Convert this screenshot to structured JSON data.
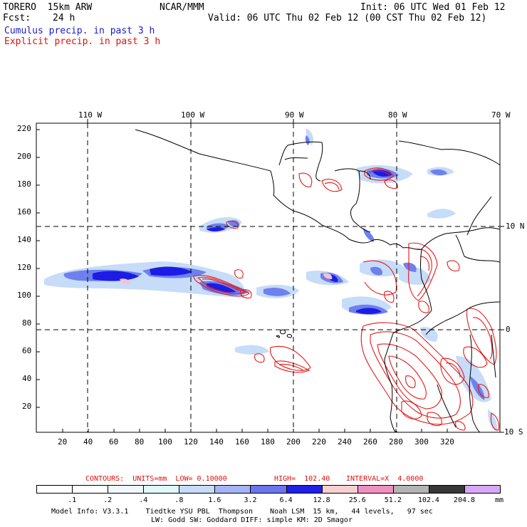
{
  "header": {
    "model": "TORERO  15km ARW",
    "org": "NCAR/MMM",
    "init": "Init: 06 UTC Wed 01 Feb 12",
    "fcst_label": "Fcst:",
    "fcst_value": "24 h",
    "valid": "Valid: 06 UTC Thu 02 Feb 12 (00 CST Thu 02 Feb 12)",
    "line_cumulus": "Cumulus precip. in past 3 h",
    "line_explicit": "Explicit precip. in past 3 h"
  },
  "map": {
    "lon_labels": [
      "110 W",
      "100 W",
      "90 W",
      "80 W",
      "70 W"
    ],
    "lat_labels": [
      "10 N",
      "0",
      "10 S"
    ],
    "y_ticks": [
      "220",
      "200",
      "180",
      "160",
      "140",
      "120",
      "100",
      "80",
      "60",
      "40",
      "20"
    ],
    "x_ticks": [
      "20",
      "40",
      "60",
      "80",
      "100",
      "120",
      "140",
      "160",
      "180",
      "200",
      "220",
      "240",
      "260",
      "280",
      "300",
      "320"
    ],
    "colors": {
      "coast": "#000000",
      "cumulus_light": "#c6dcf8",
      "cumulus_mid": "#6f80ee",
      "cumulus_dark": "#1c1ce6",
      "explicit_contour": "#e81818"
    }
  },
  "contours_line": {
    "contours": "CONTOURS:  UNITS=mm  LOW= 0.10000",
    "high": "HIGH=  102.40",
    "interval": "INTERVAL=X  4.0000"
  },
  "colorbar": {
    "labels": [
      ".1",
      ".2",
      ".4",
      ".8",
      "1.6",
      "3.2",
      "6.4",
      "12.8",
      "25.6",
      "51.2",
      "102.4",
      "204.8"
    ],
    "unit": "mm",
    "colors": [
      "#ffffff",
      "#ffffff",
      "#f0f7ff",
      "#e0f8f8",
      "#c6dcf8",
      "#a6b4f4",
      "#6c74ee",
      "#2020e6",
      "#f8d0d0",
      "#f090c0",
      "#b4b4b4",
      "#383838",
      "#d8a8f8"
    ]
  },
  "footer": {
    "line1": "Model Info: V3.3.1    Tiedtke YSU PBL  Thompson    Noah LSM  15 km,   44 levels,   97 sec",
    "line2": "LW: Godd SW: Goddard DIFF: simple KM: 2D Smagor"
  }
}
